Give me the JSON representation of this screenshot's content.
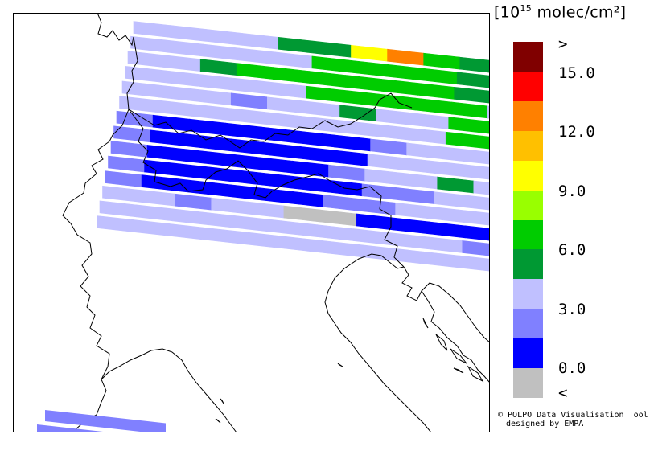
{
  "unit": {
    "open": "[",
    "base": "10",
    "exp": "15",
    "text": " molec/cm²",
    "close": "]"
  },
  "legend": {
    "bins": [
      {
        "color": "#800000"
      },
      {
        "color": "#ff0000"
      },
      {
        "color": "#ff8000"
      },
      {
        "color": "#ffc000"
      },
      {
        "color": "#ffff00"
      },
      {
        "color": "#99ff00"
      },
      {
        "color": "#00cc00"
      },
      {
        "color": "#009933"
      },
      {
        "color": "#c0c0ff"
      },
      {
        "color": "#8080ff"
      },
      {
        "color": "#0000ff"
      },
      {
        "color": "#c0c0c0"
      }
    ],
    "labels": [
      ">",
      "15.0",
      "12.0",
      "9.0",
      "6.0",
      "3.0",
      "0.0",
      "<"
    ]
  },
  "credit": {
    "line1": "© POLPO Data Visualisation Tool",
    "line2": "designed by EMPA"
  },
  "palette": {
    "G": "#c0c0c0",
    "B": "#0000ff",
    "M": "#8080ff",
    "L": "#c0c0ff",
    "D": "#009933",
    "N": "#00cc00",
    "Y": "#ffff00",
    "O": "#ff8000"
  },
  "swaths": [
    {
      "row": 0,
      "cells": "LLLLDDYOND"
    },
    {
      "row": 1,
      "cells": "LLLLLNNNNDBL"
    },
    {
      "row": 2,
      "cells": "LLDNNNNNNDLL"
    },
    {
      "row": 3,
      "cells": "LLLLLNNNNNL"
    },
    {
      "row": 4,
      "cells": "LLLMLLDLLNNDBM"
    },
    {
      "row": 5,
      "cells": "LLLLLLLLLNNNNLL"
    },
    {
      "row": 6,
      "cells": "MBBBBBBMLLLLLNDL"
    },
    {
      "row": 7,
      "cells": "MBBBBBBLLLLLLLLLDL"
    },
    {
      "row": 8,
      "cells": "MBBBBBMLLDLLMMLLLLL"
    },
    {
      "row": 9,
      "cells": "MBBBBBBMMLLLMMLLMLLB"
    },
    {
      "row": 10,
      "cells": "MBBBBBMMLLLLLLLMMLLBB"
    },
    {
      "row": 11,
      "cells": "LLMLLGGBBBBBBBLMMMMB"
    },
    {
      "row": 12,
      "cells": "LLLLLLLLLLMMMMMMMM"
    },
    {
      "row": 13,
      "cells": "LLLLLLLLLLLLLLLMMMM"
    }
  ]
}
